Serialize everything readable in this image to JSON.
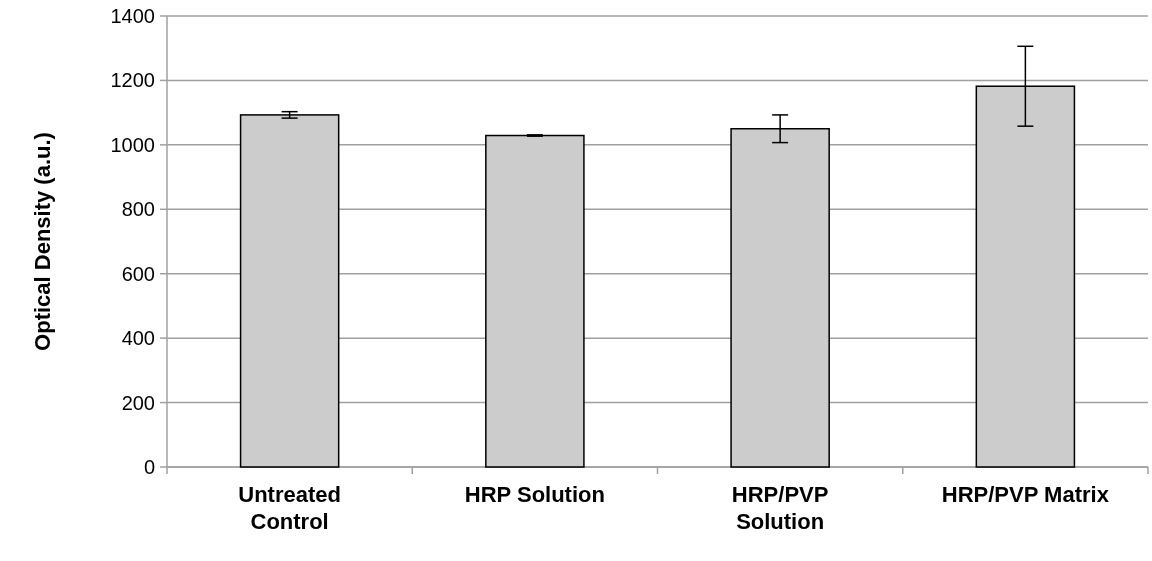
{
  "chart_data": {
    "type": "bar",
    "ylabel": "Optical Density (a.u.)",
    "categories": [
      "Untreated Control",
      "HRP Solution",
      "HRP/PVP Solution",
      "HRP/PVP Matrix"
    ],
    "values": [
      1093,
      1029,
      1050,
      1182
    ],
    "errors": [
      10,
      2,
      43,
      124
    ],
    "color": "#cccccc",
    "ylim": [
      0,
      1400
    ],
    "yticks": [
      0,
      200,
      400,
      600,
      800,
      1000,
      1200,
      1400
    ],
    "grid": "y"
  }
}
